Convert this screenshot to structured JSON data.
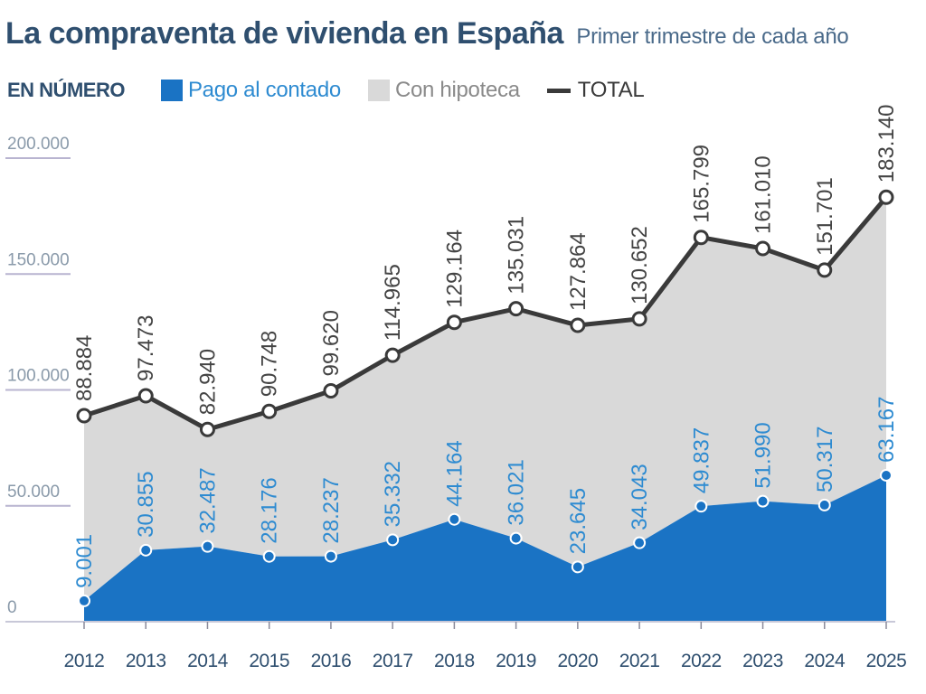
{
  "header": {
    "title": "La compraventa de vivienda en España",
    "subtitle": "Primer trimestre de cada año",
    "units": "EN NÚMERO"
  },
  "colors": {
    "cash": "#1a73c4",
    "mortgage": "#d9d9d9",
    "total": "#3a3a3a",
    "cash_text": "#2e8bd1",
    "total_text": "#444444",
    "axis_text": "#8a9aaa",
    "grid": "#b8b4d0"
  },
  "chart_data": {
    "type": "area",
    "title": "La compraventa de vivienda en España",
    "subtitle": "Primer trimestre de cada año",
    "ylabel": "EN NÚMERO",
    "ylim": [
      0,
      200000
    ],
    "yticks": [
      0,
      50000,
      100000,
      150000,
      200000
    ],
    "ytick_labels": [
      "0",
      "50.000",
      "100.000",
      "150.000",
      "200.000"
    ],
    "categories": [
      "2012",
      "2013",
      "2014",
      "2015",
      "2016",
      "2017",
      "2018",
      "2019",
      "2020",
      "2021",
      "2022",
      "2023",
      "2024",
      "2025"
    ],
    "legend_position": "top",
    "series": [
      {
        "name": "Pago al contado",
        "kind": "area",
        "values": [
          9001,
          30855,
          32487,
          28176,
          28237,
          35332,
          44164,
          36021,
          23645,
          34043,
          49837,
          51990,
          50317,
          63167
        ],
        "labels": [
          "9.001",
          "30.855",
          "32.487",
          "28.176",
          "28.237",
          "35.332",
          "44.164",
          "36.021",
          "23.645",
          "34.043",
          "49.837",
          "51.990",
          "50.317",
          "63.167"
        ]
      },
      {
        "name": "Con hipoteca",
        "kind": "area",
        "values": [
          79883,
          66618,
          50453,
          62572,
          71383,
          79633,
          85000,
          99010,
          104219,
          96609,
          115962,
          109020,
          101384,
          119973
        ]
      },
      {
        "name": "TOTAL",
        "kind": "line",
        "values": [
          88884,
          97473,
          82940,
          90748,
          99620,
          114965,
          129164,
          135031,
          127864,
          130652,
          165799,
          161010,
          151701,
          183140
        ],
        "labels": [
          "88.884",
          "97.473",
          "82.940",
          "90.748",
          "99.620",
          "114.965",
          "129.164",
          "135.031",
          "127.864",
          "130.652",
          "165.799",
          "161.010",
          "151.701",
          "183.140"
        ]
      }
    ]
  }
}
